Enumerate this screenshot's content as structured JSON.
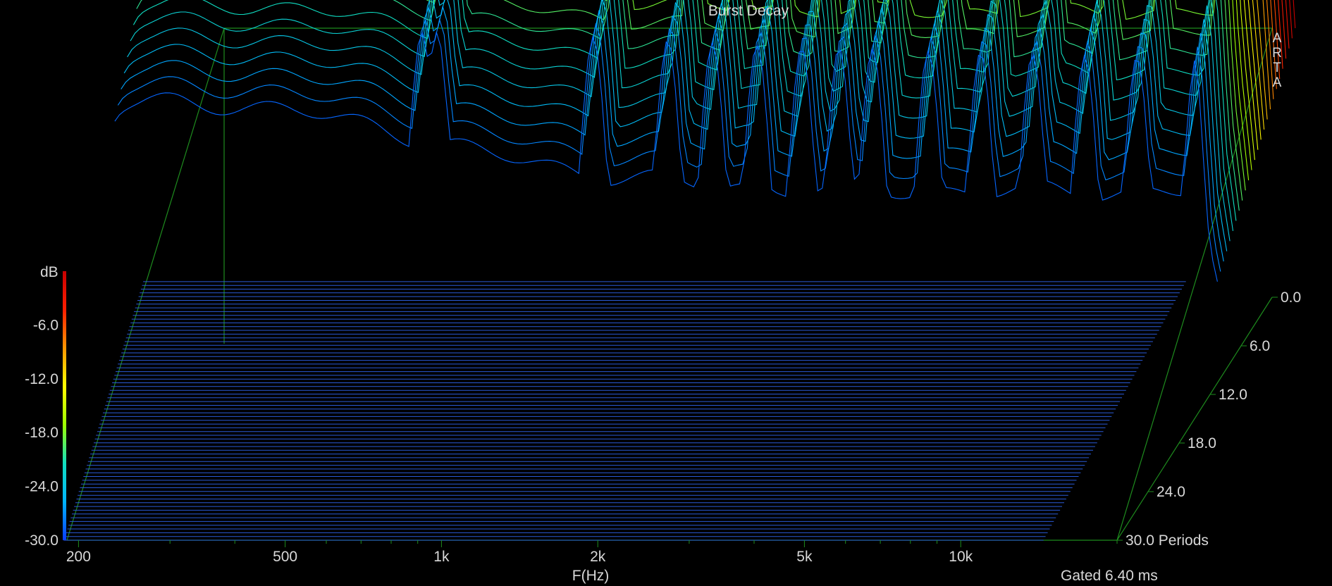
{
  "chart_data": {
    "type": "waterfall",
    "title": "Burst Decay",
    "brand": "ARTA",
    "xlabel": "F(Hz)",
    "x_scale": "log",
    "x_ticks": [
      {
        "f": 200,
        "label": "200"
      },
      {
        "f": 500,
        "label": "500"
      },
      {
        "f": 1000,
        "label": "1k"
      },
      {
        "f": 2000,
        "label": "2k"
      },
      {
        "f": 5000,
        "label": "5k"
      },
      {
        "f": 10000,
        "label": "10k"
      }
    ],
    "x_range_hz": [
      190,
      20000
    ],
    "z_label": "dB",
    "z_range_db": [
      -30,
      0
    ],
    "z_ticks": [
      "-6.0",
      "-12.0",
      "-18.0",
      "-24.0",
      "-30.0"
    ],
    "depth_ticks": [
      "0.0",
      "6.0",
      "12.0",
      "18.0",
      "24.0",
      "30.0 Periods"
    ],
    "depth_range_periods": [
      0,
      30
    ],
    "gate_label": "Gated 6.40 ms",
    "colors": {
      "background": "#000000",
      "frame": "#1e8c1e",
      "floor": "#2a5ad6",
      "colormap": [
        "#0a3cff",
        "#00b4ff",
        "#10e0c0",
        "#9cff00",
        "#ffff00",
        "#ff9600",
        "#ff1e00",
        "#c80000"
      ]
    }
  }
}
